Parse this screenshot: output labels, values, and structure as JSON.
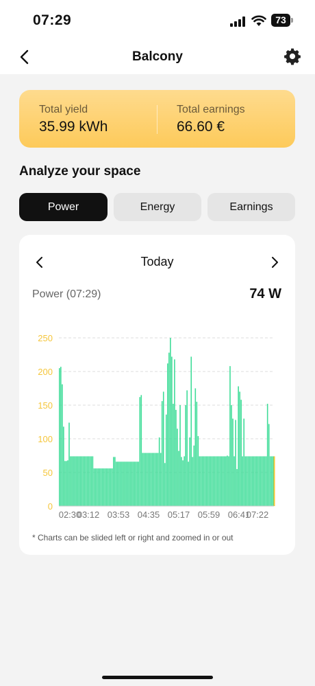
{
  "status_bar": {
    "time": "07:29",
    "battery": "73"
  },
  "nav": {
    "title": "Balcony"
  },
  "yield_card": {
    "total_yield_label": "Total yield",
    "total_yield_value": "35.99 kWh",
    "total_earnings_label": "Total earnings",
    "total_earnings_value": "66.60 €"
  },
  "section_title": "Analyze your space",
  "tabs": [
    {
      "label": "Power",
      "active": true
    },
    {
      "label": "Energy",
      "active": false
    },
    {
      "label": "Earnings",
      "active": false
    }
  ],
  "chart_card": {
    "date_label": "Today",
    "power_label": "Power (07:29)",
    "power_value": "74 W",
    "note": "* Charts can be slided left or right and zoomed in or out"
  },
  "colors": {
    "bar": "#3ddc97",
    "current_bar": "#f5c63c",
    "axis_label": "#f5c63c",
    "card_gradient_top": "#fedb8e",
    "card_gradient_bottom": "#fdca5a"
  },
  "icons": {
    "back": "chevron-left-icon",
    "settings": "gear-icon",
    "prev": "chevron-left-icon",
    "next": "chevron-right-icon"
  },
  "chart_data": {
    "type": "bar",
    "ylim": [
      0,
      250
    ],
    "yticks": [
      0,
      50,
      100,
      150,
      200,
      250
    ],
    "xtick_labels": [
      "02:30",
      "03:12",
      "03:53",
      "04:35",
      "05:17",
      "05:59",
      "06:41",
      "07:22"
    ],
    "x_start": "02:30",
    "x_end": "07:29",
    "values": [
      205,
      207,
      181,
      118,
      67,
      67,
      68,
      124,
      74,
      74,
      74,
      74,
      74,
      74,
      74,
      74,
      74,
      74,
      74,
      74,
      74,
      74,
      74,
      74,
      74,
      56,
      56,
      56,
      56,
      56,
      56,
      56,
      56,
      56,
      56,
      56,
      56,
      56,
      56,
      73,
      73,
      66,
      66,
      66,
      66,
      66,
      66,
      66,
      66,
      66,
      66,
      66,
      66,
      66,
      66,
      66,
      66,
      66,
      162,
      165,
      79,
      79,
      79,
      79,
      79,
      79,
      79,
      79,
      79,
      79,
      79,
      79,
      102,
      79,
      156,
      170,
      64,
      136,
      212,
      228,
      250,
      222,
      152,
      218,
      143,
      115,
      82,
      150,
      73,
      68,
      74,
      150,
      172,
      66,
      102,
      222,
      73,
      90,
      175,
      155,
      104,
      74,
      74,
      74,
      74,
      74,
      74,
      74,
      74,
      74,
      74,
      74,
      74,
      74,
      74,
      74,
      74,
      74,
      74,
      74,
      74,
      75,
      74,
      208,
      150,
      130,
      74,
      128,
      55,
      178,
      170,
      158,
      74,
      130,
      74,
      74,
      74,
      74,
      74,
      74,
      74,
      74,
      74,
      74,
      74,
      74,
      74,
      74,
      74,
      74,
      152,
      122,
      74,
      74,
      74
    ],
    "grid": true
  }
}
